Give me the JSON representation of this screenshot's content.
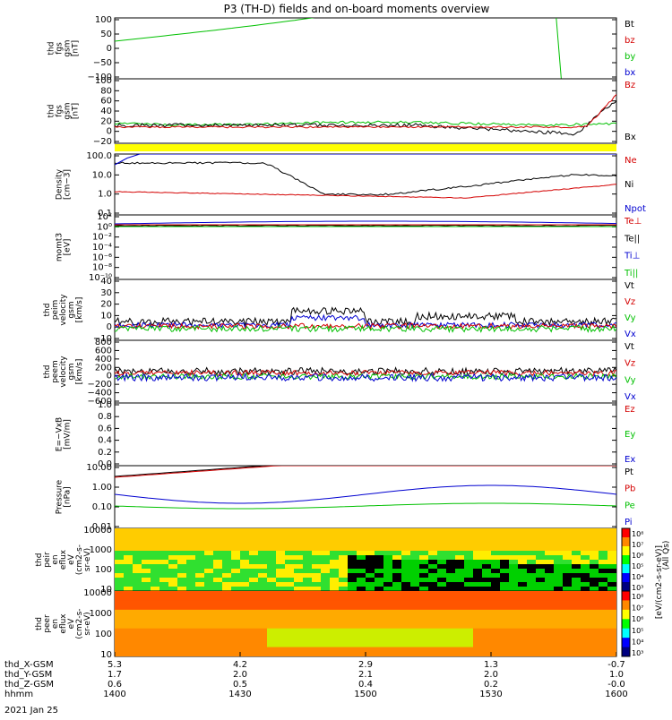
{
  "title": "P3 (TH-D) fields and on-board moments overview",
  "date_label": "2021 Jan 25",
  "chart_data": {
    "type": "line",
    "title": "P3 (TH-D) fields and on-board moments overview",
    "x_axis": {
      "row_labels": [
        "thd_X-GSM",
        "thd_Y-GSM",
        "thd_Z-GSM",
        "hhmm"
      ],
      "columns": [
        {
          "x": "5.3",
          "y": "1.7",
          "z": "0.6",
          "hhmm": "1400"
        },
        {
          "x": "4.2",
          "y": "2.0",
          "z": "0.5",
          "hhmm": "1430"
        },
        {
          "x": "2.9",
          "y": "2.1",
          "z": "0.4",
          "hhmm": "1500"
        },
        {
          "x": "1.3",
          "y": "2.0",
          "z": "0.2",
          "hhmm": "1530"
        },
        {
          "x": "-0.7",
          "y": "1.0",
          "z": "-0.0",
          "hhmm": "1600"
        }
      ]
    },
    "panels": [
      {
        "ylabel": [
          "thd",
          "fgs",
          "gsm",
          "[nT]"
        ],
        "yticks": [
          "100",
          "50",
          "0",
          "−50",
          "−100"
        ],
        "legend": [
          {
            "name": "Bt",
            "color": "#000000"
          },
          {
            "name": "bz",
            "color": "#d40000"
          },
          {
            "name": "by",
            "color": "#00c000"
          },
          {
            "name": "bx",
            "color": "#0000d0"
          }
        ]
      },
      {
        "ylabel": [
          "thd",
          "fgs",
          "gsm",
          "[nT]"
        ],
        "yticks": [
          "100",
          "80",
          "60",
          "40",
          "20",
          "0",
          "−20"
        ],
        "legend": [
          {
            "name": "Bz",
            "color": "#d40000"
          },
          {
            "name": "Bx",
            "color": "#000000"
          }
        ]
      },
      {
        "ylabel": [
          "Density",
          "[cm−3]"
        ],
        "yticks": [
          "100.0",
          "10.0",
          "1.0",
          "0.1"
        ],
        "legend": [
          {
            "name": "Ne",
            "color": "#d40000"
          },
          {
            "name": "Ni",
            "color": "#000000"
          },
          {
            "name": "Npot",
            "color": "#0000d0"
          }
        ]
      },
      {
        "ylabel": [
          "momt3",
          "[eV]"
        ],
        "yticks": [
          "10²",
          "10⁰",
          "10⁻²",
          "10⁻⁴",
          "10⁻⁶",
          "10⁻⁸",
          "10⁻¹⁰"
        ],
        "legend": [
          {
            "name": "Te⊥",
            "color": "#d40000"
          },
          {
            "name": "Te||",
            "color": "#000000"
          },
          {
            "name": "Ti⊥",
            "color": "#0000d0"
          },
          {
            "name": "Ti||",
            "color": "#00c000"
          }
        ]
      },
      {
        "ylabel": [
          "thd",
          "peim",
          "velocity",
          "gsm",
          "[km/s]"
        ],
        "yticks": [
          "40",
          "30",
          "20",
          "10",
          "0",
          "−10"
        ],
        "legend": [
          {
            "name": "Vt",
            "color": "#000000"
          },
          {
            "name": "Vz",
            "color": "#d40000"
          },
          {
            "name": "Vy",
            "color": "#00c000"
          },
          {
            "name": "Vx",
            "color": "#0000d0"
          }
        ]
      },
      {
        "ylabel": [
          "thd",
          "peem",
          "velocity",
          "gsm",
          "[km/s]"
        ],
        "yticks": [
          "800",
          "600",
          "400",
          "200",
          "0",
          "−200",
          "−400",
          "−600"
        ],
        "legend": [
          {
            "name": "Vt",
            "color": "#000000"
          },
          {
            "name": "Vz",
            "color": "#d40000"
          },
          {
            "name": "Vy",
            "color": "#00c000"
          },
          {
            "name": "Vx",
            "color": "#0000d0"
          }
        ]
      },
      {
        "ylabel": [
          "E=−VxB",
          "[mV/m]"
        ],
        "yticks": [
          "1.0",
          "0.8",
          "0.6",
          "0.4",
          "0.2",
          "0.0"
        ],
        "legend": [
          {
            "name": "Ez",
            "color": "#d40000"
          },
          {
            "name": "Ey",
            "color": "#00c000"
          },
          {
            "name": "Ex",
            "color": "#0000d0"
          }
        ]
      },
      {
        "ylabel": [
          "Pressure",
          "[nPa]"
        ],
        "yticks": [
          "10.00",
          "1.00",
          "0.10",
          "0.01"
        ],
        "legend": [
          {
            "name": "Pt",
            "color": "#000000"
          },
          {
            "name": "Pb",
            "color": "#d40000"
          },
          {
            "name": "Pe",
            "color": "#00c000"
          },
          {
            "name": "Pi",
            "color": "#0000d0"
          }
        ]
      },
      {
        "ylabel": [
          "thd",
          "peir",
          "en",
          "eflux",
          "eV",
          "(cm2-s-",
          "sr-eV)"
        ],
        "yticks": [
          "10000",
          "1000",
          "100",
          "10"
        ],
        "colorbar_ticks": [
          "10⁸",
          "10⁷",
          "10⁶",
          "10⁵",
          "10⁴",
          "10³"
        ]
      },
      {
        "ylabel": [
          "thd",
          "peer",
          "en",
          "eflux",
          "eV",
          "(cm2-s-",
          "sr-eV)"
        ],
        "yticks": [
          "10000",
          "1000",
          "100",
          "10"
        ],
        "colorbar_ticks": [
          "10⁸",
          "10⁷",
          "10⁶",
          "10⁵",
          "10⁴",
          "10³"
        ]
      }
    ],
    "colorbar_label": "[eV/(cm2-s-sr-eV)]",
    "colorbar_label2": "(All Qs)"
  }
}
